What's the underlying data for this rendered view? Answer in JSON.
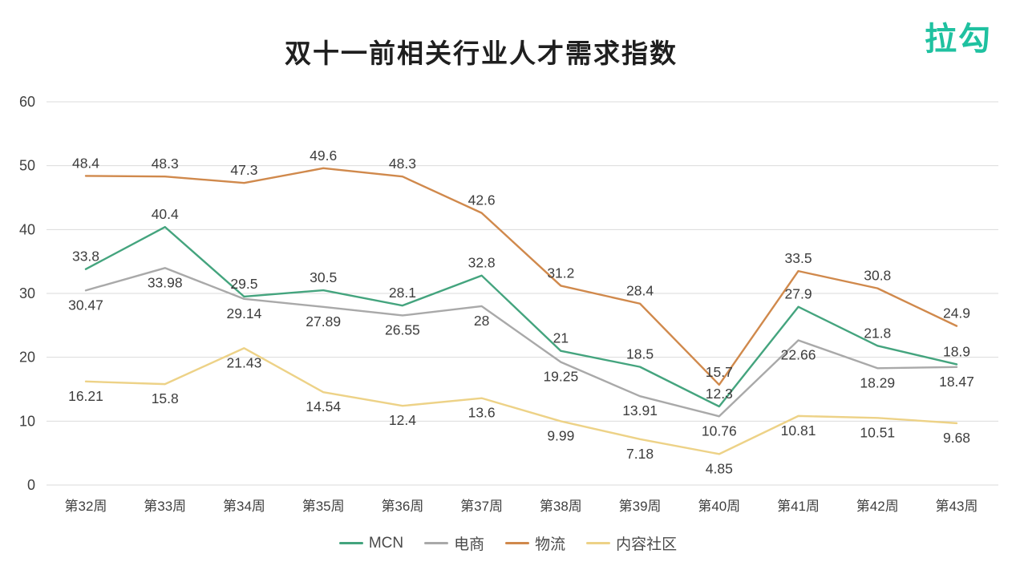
{
  "logo": {
    "text": "拉勾",
    "color": "#1fc1a0"
  },
  "axis": {
    "tick_color": "#3f3f3f",
    "grid_color": "#dbdbdb",
    "data_label_color": "#3d3d3d"
  },
  "chart_data": {
    "type": "line",
    "title": "双十一前相关行业人才需求指数",
    "categories": [
      "第32周",
      "第33周",
      "第34周",
      "第35周",
      "第36周",
      "第37周",
      "第38周",
      "第39周",
      "第40周",
      "第41周",
      "第42周",
      "第43周"
    ],
    "series": [
      {
        "name": "MCN",
        "color": "#44a47e",
        "label_position": "above",
        "values": [
          33.8,
          40.4,
          29.5,
          30.5,
          28.1,
          32.8,
          21,
          18.5,
          12.3,
          27.9,
          21.8,
          18.9
        ]
      },
      {
        "name": "电商",
        "color": "#a9a9a9",
        "label_position": "below",
        "values": [
          30.47,
          33.98,
          29.14,
          27.89,
          26.55,
          28,
          19.25,
          13.91,
          10.76,
          22.66,
          18.29,
          18.47
        ]
      },
      {
        "name": "物流",
        "color": "#d0894c",
        "label_position": "above",
        "values": [
          48.4,
          48.3,
          47.3,
          49.6,
          48.3,
          42.6,
          31.2,
          28.4,
          15.7,
          33.5,
          30.8,
          24.9
        ]
      },
      {
        "name": "内容社区",
        "color": "#edd287",
        "label_position": "below",
        "values": [
          16.21,
          15.8,
          21.43,
          14.54,
          12.4,
          13.6,
          9.99,
          7.18,
          4.85,
          10.81,
          10.51,
          9.68
        ]
      }
    ],
    "ylim": [
      0,
      60
    ],
    "yticks": [
      0,
      10,
      20,
      30,
      40,
      50,
      60
    ],
    "grid": "horizontal",
    "legend_position": "bottom",
    "show_data_labels": true
  }
}
